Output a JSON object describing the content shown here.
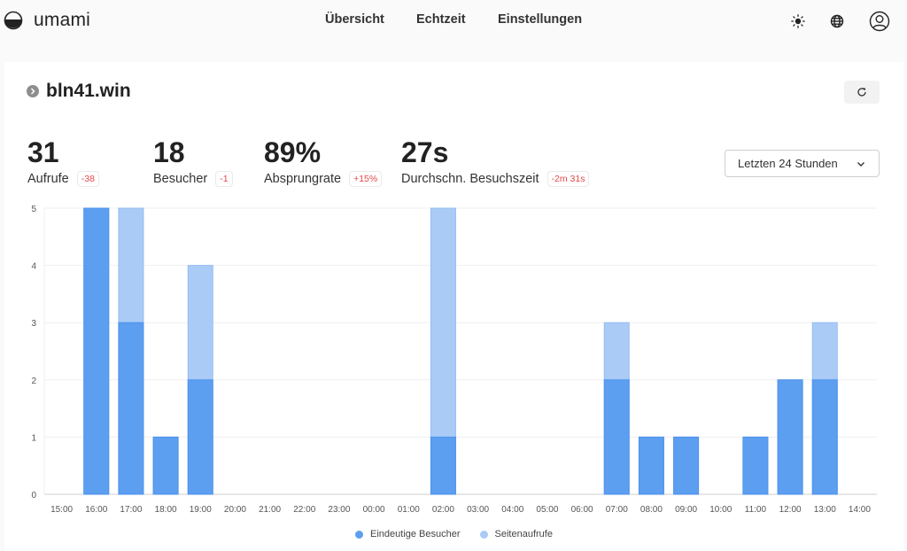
{
  "app": {
    "name": "umami"
  },
  "nav": {
    "items": [
      {
        "label": "Übersicht"
      },
      {
        "label": "Echtzeit"
      },
      {
        "label": "Einstellungen"
      }
    ]
  },
  "header_icons": {
    "theme": "sun-icon",
    "language": "globe-icon",
    "profile": "user-circle-icon"
  },
  "site": {
    "name": "bln41.win",
    "refresh_icon": "refresh-icon"
  },
  "metrics": [
    {
      "value": "31",
      "label": "Aufrufe",
      "change": "-38"
    },
    {
      "value": "18",
      "label": "Besucher",
      "change": "-1"
    },
    {
      "value": "89%",
      "label": "Absprungrate",
      "change": "+15%"
    },
    {
      "value": "27s",
      "label": "Durchschn. Besuchszeit",
      "change": "-2m 31s"
    }
  ],
  "date_range": {
    "selected": "Letzten 24 Stunden"
  },
  "colors": {
    "visitors": "#5c9ef0",
    "pageviews": "#a9cbf6",
    "change_negative": "#e34848"
  },
  "chart_data": {
    "type": "bar",
    "stacked": false,
    "overlapping": true,
    "categories": [
      "15:00",
      "16:00",
      "17:00",
      "18:00",
      "19:00",
      "20:00",
      "21:00",
      "22:00",
      "23:00",
      "00:00",
      "01:00",
      "02:00",
      "03:00",
      "04:00",
      "05:00",
      "06:00",
      "07:00",
      "08:00",
      "09:00",
      "10:00",
      "11:00",
      "12:00",
      "13:00",
      "14:00"
    ],
    "series": [
      {
        "name": "Eindeutige Besucher",
        "color": "#5c9ef0",
        "values": [
          0,
          5,
          3,
          1,
          2,
          0,
          0,
          0,
          0,
          0,
          0,
          1,
          0,
          0,
          0,
          0,
          2,
          1,
          1,
          0,
          1,
          2,
          2,
          0
        ]
      },
      {
        "name": "Seitenaufrufe",
        "color": "#a9cbf6",
        "values": [
          0,
          5,
          5,
          1,
          4,
          0,
          0,
          0,
          0,
          0,
          0,
          5,
          0,
          0,
          0,
          0,
          3,
          1,
          1,
          0,
          1,
          2,
          3,
          0
        ]
      }
    ],
    "title": "",
    "xlabel": "",
    "ylabel": "",
    "ylim": [
      0,
      5
    ],
    "yticks": [
      0,
      1,
      2,
      3,
      4,
      5
    ],
    "grid": true,
    "legend_position": "bottom"
  }
}
